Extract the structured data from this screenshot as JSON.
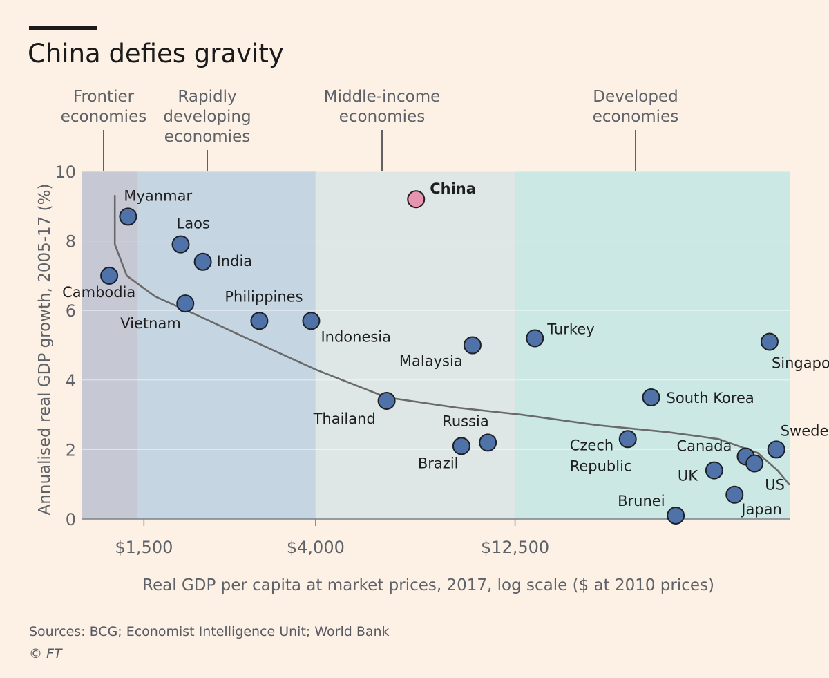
{
  "title": "China defies gravity",
  "source": "Sources: BCG; Economist Intelligence Unit; World Bank",
  "credit": "© FT",
  "colors": {
    "point": "#4f73a9",
    "highlight": "#e795ae",
    "band_frontier": "#c6c9d4",
    "band_rapid": "#c5d6e2",
    "band_middle": "#dfe6e6",
    "band_developed": "#cce8e5",
    "trend": "#6a6a6a"
  },
  "chart_data": {
    "type": "scatter",
    "title": "China defies gravity",
    "xlabel": "Real GDP per capita at market prices, 2017, log scale ($ at 2010 prices)",
    "ylabel": "Annualised real GDP growth, 2005-17 (%)",
    "x_scale": "log",
    "xlim": [
      1050,
      60000
    ],
    "ylim": [
      0,
      10
    ],
    "x_ticks": [
      {
        "value": 1500,
        "label": "$1,500"
      },
      {
        "value": 4000,
        "label": "$4,000"
      },
      {
        "value": 12500,
        "label": "$12,500"
      }
    ],
    "y_ticks": [
      0,
      2,
      4,
      6,
      8,
      10
    ],
    "bands": [
      {
        "label": [
          "Frontier",
          "economies"
        ],
        "from": 1050,
        "to": 1450,
        "color_key": "band_frontier"
      },
      {
        "label": [
          "Rapidly",
          "developing",
          "economies"
        ],
        "from": 1450,
        "to": 4000,
        "color_key": "band_rapid"
      },
      {
        "label": [
          "Middle-income",
          "economies"
        ],
        "from": 4000,
        "to": 12500,
        "color_key": "band_middle"
      },
      {
        "label": [
          "Developed",
          "economies"
        ],
        "from": 12500,
        "to": 60000,
        "color_key": "band_developed"
      }
    ],
    "points": [
      {
        "name": [
          "Myanmar"
        ],
        "x": 1370,
        "y": 8.7,
        "la": "start",
        "ldx": -6,
        "ldy": -23
      },
      {
        "name": [
          "Cambodia"
        ],
        "x": 1230,
        "y": 7.0,
        "la": "start",
        "ldx": -68,
        "ldy": 31
      },
      {
        "name": [
          "Laos"
        ],
        "x": 1850,
        "y": 7.9,
        "la": "start",
        "ldx": -6,
        "ldy": -23
      },
      {
        "name": [
          "India"
        ],
        "x": 2100,
        "y": 7.4,
        "la": "start",
        "ldx": 20,
        "ldy": 6
      },
      {
        "name": [
          "Vietnam"
        ],
        "x": 1900,
        "y": 6.2,
        "la": "start",
        "ldx": -94,
        "ldy": 36
      },
      {
        "name": [
          "Philippines"
        ],
        "x": 2900,
        "y": 5.7,
        "la": "start",
        "ldx": -50,
        "ldy": -28
      },
      {
        "name": [
          "Indonesia"
        ],
        "x": 3900,
        "y": 5.7,
        "la": "start",
        "ldx": 14,
        "ldy": 30
      },
      {
        "name": [
          "Thailand"
        ],
        "x": 6000,
        "y": 3.4,
        "la": "start",
        "ldx": -106,
        "ldy": 33
      },
      {
        "name": [
          "China"
        ],
        "x": 7100,
        "y": 9.2,
        "la": "start",
        "ldx": 20,
        "ldy": -8,
        "highlight": true
      },
      {
        "name": [
          "Malaysia"
        ],
        "x": 9800,
        "y": 5.0,
        "la": "start",
        "ldx": -106,
        "ldy": 30
      },
      {
        "name": [
          "Turkey"
        ],
        "x": 14000,
        "y": 5.2,
        "la": "start",
        "ldx": 18,
        "ldy": -6
      },
      {
        "name": [
          "Russia"
        ],
        "x": 10700,
        "y": 2.2,
        "la": "start",
        "ldx": -66,
        "ldy": -24
      },
      {
        "name": [
          "Brazil"
        ],
        "x": 9200,
        "y": 2.1,
        "la": "start",
        "ldx": -63,
        "ldy": 32
      },
      {
        "name": [
          "Czech",
          "Republic"
        ],
        "x": 23800,
        "y": 2.3,
        "la": "start",
        "ldx": -84,
        "ldy": 16
      },
      {
        "name": [
          "South Korea"
        ],
        "x": 27200,
        "y": 3.5,
        "la": "start",
        "ldx": 22,
        "ldy": 8
      },
      {
        "name": [
          "Brunei"
        ],
        "x": 31300,
        "y": 0.1,
        "la": "start",
        "ldx": -84,
        "ldy": -14
      },
      {
        "name": [
          "Singapore"
        ],
        "x": 53500,
        "y": 5.1,
        "la": "start",
        "ldx": 3,
        "ldy": 38
      },
      {
        "name": [
          "Canada"
        ],
        "x": 46700,
        "y": 1.8,
        "la": "start",
        "ldx": -100,
        "ldy": -8
      },
      {
        "name": [
          "UK"
        ],
        "x": 39000,
        "y": 1.4,
        "la": "start",
        "ldx": -53,
        "ldy": 15
      },
      {
        "name": [
          "Sweden"
        ],
        "x": 55600,
        "y": 2.0,
        "la": "start",
        "ldx": 6,
        "ldy": -20
      },
      {
        "name": [
          "US"
        ],
        "x": 49100,
        "y": 1.6,
        "la": "start",
        "ldx": 15,
        "ldy": 38
      },
      {
        "name": [
          "Japan"
        ],
        "x": 43800,
        "y": 0.7,
        "la": "start",
        "ldx": 10,
        "ldy": 28
      }
    ],
    "trendline": [
      [
        1270,
        9.3
      ],
      [
        1270,
        7.9
      ],
      [
        1360,
        7.0
      ],
      [
        1600,
        6.4
      ],
      [
        2000,
        5.9
      ],
      [
        2700,
        5.2
      ],
      [
        4000,
        4.3
      ],
      [
        6000,
        3.5
      ],
      [
        9000,
        3.2
      ],
      [
        13000,
        3.0
      ],
      [
        20000,
        2.7
      ],
      [
        30000,
        2.5
      ],
      [
        40000,
        2.3
      ],
      [
        50000,
        1.9
      ],
      [
        56000,
        1.4
      ],
      [
        59800,
        1.0
      ]
    ]
  }
}
